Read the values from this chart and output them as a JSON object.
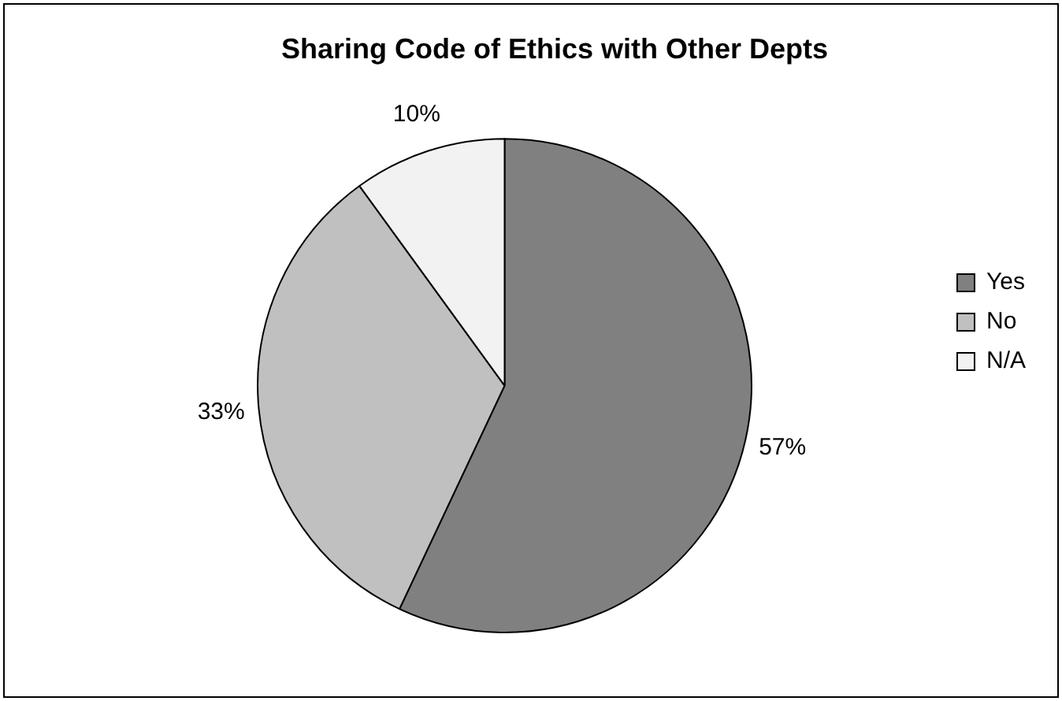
{
  "chart_data": {
    "type": "pie",
    "title": "Sharing Code of Ethics with Other Depts",
    "categories": [
      "Yes",
      "No",
      "N/A"
    ],
    "values": [
      57,
      33,
      10
    ],
    "colors": [
      "#808080",
      "#c0c0c0",
      "#f2f2f2"
    ],
    "value_labels": [
      "57%",
      "33%",
      "10%"
    ],
    "legend": "right"
  }
}
